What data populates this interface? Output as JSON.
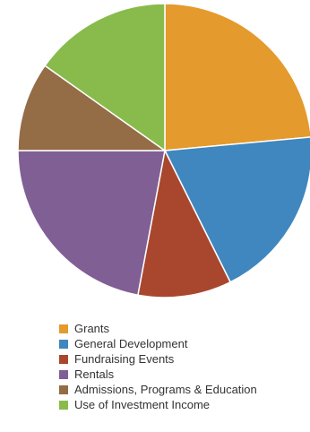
{
  "chart_data": {
    "type": "pie",
    "title": "",
    "categories": [
      "Grants",
      "General Development",
      "Fundraising Events",
      "Rentals",
      "Admissions, Programs & Education",
      "Use of Investment Income"
    ],
    "values": [
      24,
      19.5,
      10.5,
      22.5,
      10,
      15.5
    ],
    "colors": [
      "#E49A2C",
      "#3F87BE",
      "#A9472E",
      "#805F94",
      "#946C45",
      "#88BB4C"
    ],
    "start_angle_deg": 0,
    "direction": "clockwise",
    "legend_position": "bottom"
  }
}
